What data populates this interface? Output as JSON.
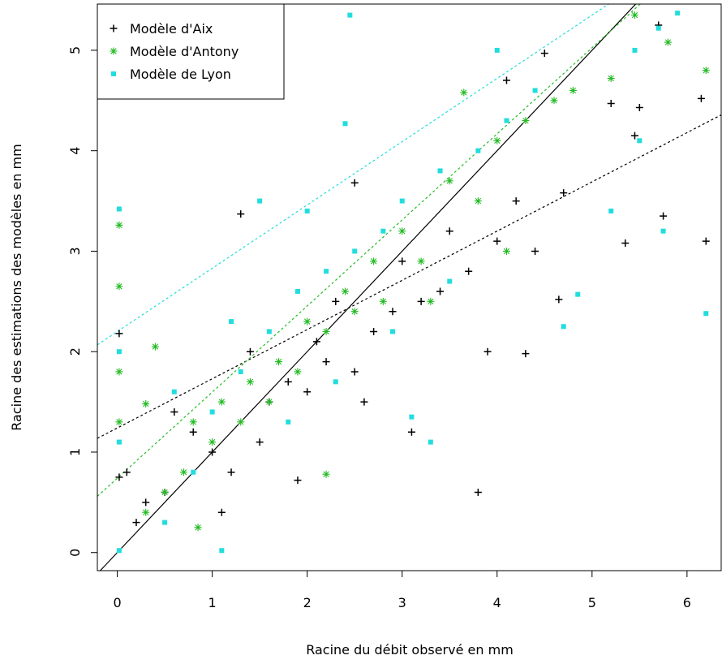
{
  "chart_data": {
    "type": "scatter",
    "xlabel": "Racine du débit observé en mm",
    "ylabel": "Racine des estimations des modèles en mm",
    "xlim": [
      -0.21,
      6.36
    ],
    "ylim": [
      -0.18,
      5.46
    ],
    "xticks": [
      0,
      1,
      2,
      3,
      4,
      5,
      6
    ],
    "yticks": [
      0,
      1,
      2,
      3,
      4,
      5
    ],
    "legend": "top-left",
    "series": [
      {
        "name": "Modèle d'Aix",
        "color": "#000000",
        "marker": "plus",
        "x": [
          1.3,
          3.8,
          6.2,
          6.15,
          5.7,
          5.45,
          5.35,
          5.75,
          5.2,
          5.5,
          4.3,
          4.65,
          0.02,
          0.02,
          4.7,
          3.1,
          1.1,
          2.5,
          0.3,
          0.5,
          0.6,
          0.8,
          1.0,
          1.2,
          1.4,
          1.6,
          1.8,
          1.9,
          2.0,
          2.2,
          2.3,
          2.5,
          2.7,
          2.9,
          3.0,
          3.2,
          3.4,
          3.5,
          3.7,
          3.9,
          4.0,
          4.1,
          4.2,
          4.4,
          4.5,
          0.1,
          0.2,
          2.1,
          1.5,
          2.6
        ],
        "y": [
          3.37,
          0.6,
          3.1,
          4.52,
          5.25,
          4.15,
          3.08,
          3.35,
          4.47,
          4.43,
          1.98,
          2.52,
          2.18,
          0.75,
          3.58,
          1.2,
          0.4,
          3.68,
          0.5,
          0.6,
          1.4,
          1.2,
          1.0,
          0.8,
          2.0,
          1.5,
          1.7,
          0.72,
          1.6,
          1.9,
          2.5,
          1.8,
          2.2,
          2.4,
          2.9,
          2.5,
          2.6,
          3.2,
          2.8,
          2.0,
          3.1,
          4.7,
          3.5,
          3.0,
          4.97,
          0.8,
          0.3,
          2.1,
          1.1,
          1.5
        ]
      },
      {
        "name": "Modèle d'Antony",
        "color": "#22bb22",
        "marker": "star",
        "x": [
          0.02,
          0.02,
          0.02,
          0.02,
          0.4,
          0.3,
          0.85,
          2.2,
          3.65,
          5.2,
          5.8,
          6.2,
          5.45,
          4.0,
          3.8,
          3.2,
          2.8,
          2.5,
          2.2,
          1.9,
          1.6,
          1.3,
          1.0,
          0.7,
          0.5,
          0.3,
          4.3,
          4.6,
          4.8,
          3.5,
          3.0,
          2.7,
          2.4,
          2.0,
          1.7,
          1.4,
          1.1,
          0.8,
          3.3,
          4.1
        ],
        "y": [
          2.65,
          3.26,
          1.8,
          1.3,
          2.05,
          1.48,
          0.25,
          0.78,
          4.58,
          4.72,
          5.08,
          4.8,
          5.35,
          4.1,
          3.5,
          2.9,
          2.5,
          2.4,
          2.2,
          1.8,
          1.5,
          1.3,
          1.1,
          0.8,
          0.6,
          0.4,
          4.3,
          4.5,
          4.6,
          3.7,
          3.2,
          2.9,
          2.6,
          2.3,
          1.9,
          1.7,
          1.5,
          1.3,
          2.5,
          3.0
        ]
      },
      {
        "name": "Modèle de Lyon",
        "color": "#22dddd",
        "marker": "square",
        "x": [
          0.02,
          0.02,
          0.02,
          0.02,
          1.1,
          2.45,
          2.4,
          5.9,
          5.7,
          5.45,
          6.2,
          5.2,
          5.75,
          4.7,
          4.85,
          5.5,
          1.5,
          2.0,
          3.3,
          3.1,
          0.5,
          0.8,
          1.0,
          1.3,
          1.6,
          1.9,
          2.2,
          2.5,
          2.8,
          3.0,
          3.4,
          3.8,
          4.1,
          4.4,
          4.0,
          1.8,
          2.3,
          2.9,
          3.5,
          1.2,
          0.6
        ],
        "y": [
          3.42,
          2.0,
          0.02,
          1.1,
          0.02,
          5.35,
          4.27,
          5.37,
          5.22,
          5.0,
          2.38,
          3.4,
          3.2,
          2.25,
          2.57,
          4.1,
          3.5,
          3.4,
          1.1,
          1.35,
          0.3,
          0.8,
          1.4,
          1.8,
          2.2,
          2.6,
          2.8,
          3.0,
          3.2,
          3.5,
          3.8,
          4.0,
          4.3,
          4.6,
          5.0,
          1.3,
          1.7,
          2.2,
          2.7,
          2.3,
          1.6
        ]
      }
    ],
    "reference_lines": [
      {
        "color": "#000000",
        "dash": false,
        "intercept": 0,
        "slope": 1
      },
      {
        "color": "#000000",
        "dash": true,
        "intercept": 1.24,
        "slope": 0.49
      },
      {
        "color": "#22bb22",
        "dash": true,
        "intercept": 0.74,
        "slope": 0.857
      },
      {
        "color": "#22dddd",
        "dash": true,
        "intercept": 2.2,
        "slope": 0.63
      }
    ]
  }
}
